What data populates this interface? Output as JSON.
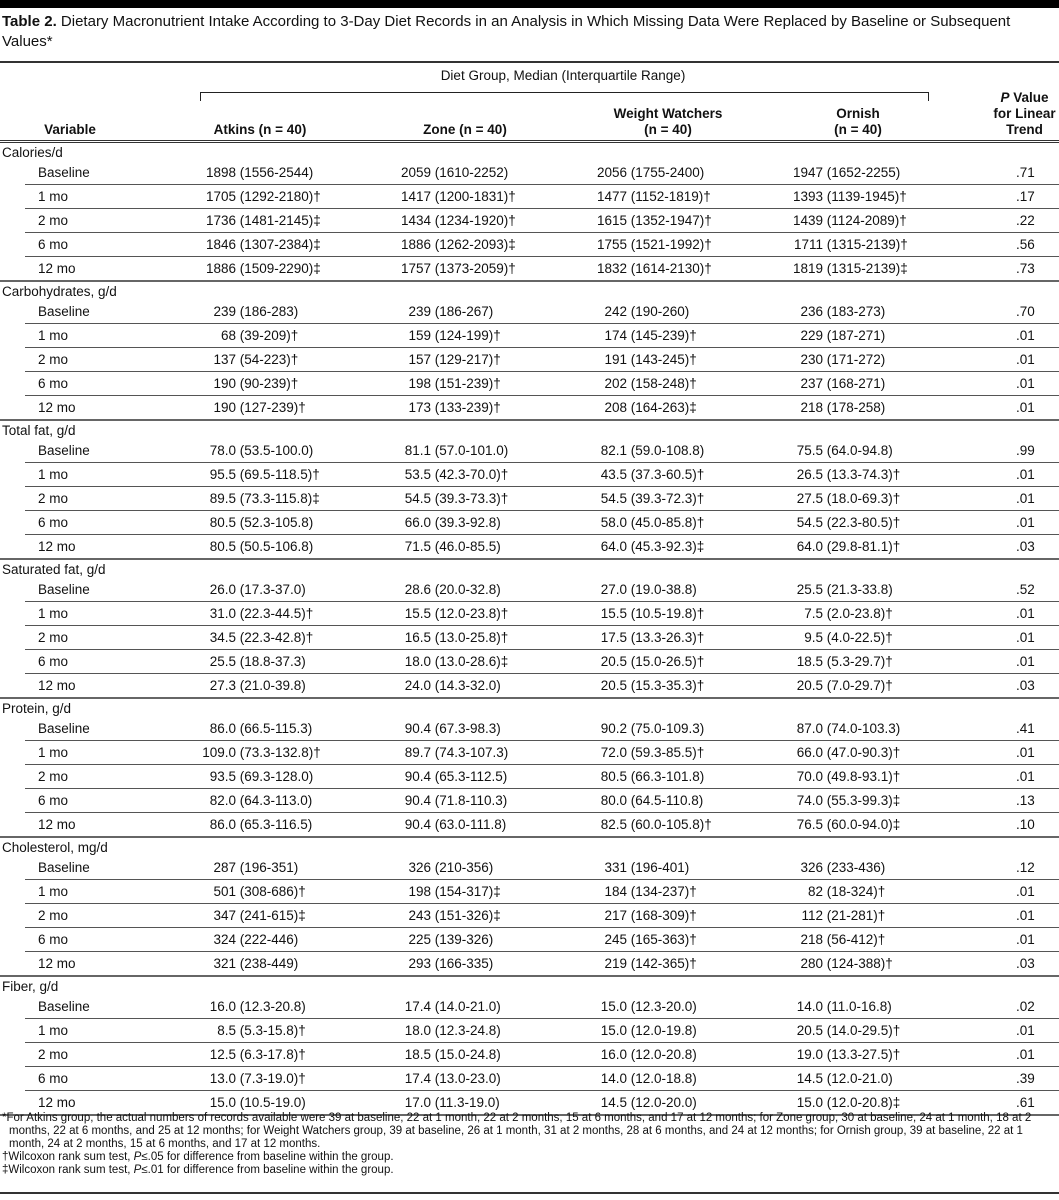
{
  "title": {
    "label": "Table 2.",
    "text": "Dietary Macronutrient Intake According to 3-Day Diet Records in an Analysis in Which Missing Data Were Replaced by Baseline or Subsequent Values*"
  },
  "header": {
    "spanner": "Diet Group, Median (Interquartile Range)",
    "variable": "Variable",
    "atkins": "Atkins (n = 40)",
    "zone": "Zone (n = 40)",
    "ww_line1": "Weight Watchers",
    "ww_line2": "(n = 40)",
    "ornish_line1": "Ornish",
    "ornish_line2": "(n = 40)",
    "p_italic": "P",
    "p_line1": " Value",
    "p_line2": "for Linear",
    "p_line3": "Trend"
  },
  "groups": [
    {
      "label": "Calories/d",
      "rows": [
        [
          "Baseline",
          "1898 (1556-2544)",
          "2059 (1610-2252)",
          "2056 (1755-2400)",
          "1947 (1652-2255)",
          ".71"
        ],
        [
          "1 mo",
          "1705 (1292-2180)†",
          "1417 (1200-1831)†",
          "1477 (1152-1819)†",
          "1393 (1139-1945)†",
          ".17"
        ],
        [
          "2 mo",
          "1736 (1481-2145)‡",
          "1434 (1234-1920)†",
          "1615 (1352-1947)†",
          "1439 (1124-2089)†",
          ".22"
        ],
        [
          "6 mo",
          "1846 (1307-2384)‡",
          "1886 (1262-2093)‡",
          "1755 (1521-1992)†",
          "1711 (1315-2139)†",
          ".56"
        ],
        [
          "12 mo",
          "1886 (1509-2290)‡",
          "1757 (1373-2059)†",
          "1832 (1614-2130)†",
          "1819 (1315-2139)‡",
          ".73"
        ]
      ]
    },
    {
      "label": "Carbohydrates, g/d",
      "rows": [
        [
          "Baseline",
          "239 (186-283)",
          "239 (186-267)",
          "242 (190-260)",
          "236 (183-273)",
          ".70"
        ],
        [
          "1 mo",
          "68 (39-209)†",
          "159 (124-199)†",
          "174 (145-239)†",
          "229 (187-271)",
          ".01"
        ],
        [
          "2 mo",
          "137 (54-223)†",
          "157 (129-217)†",
          "191 (143-245)†",
          "230 (171-272)",
          ".01"
        ],
        [
          "6 mo",
          "190 (90-239)†",
          "198 (151-239)†",
          "202 (158-248)†",
          "237 (168-271)",
          ".01"
        ],
        [
          "12 mo",
          "190 (127-239)†",
          "173 (133-239)†",
          "208 (164-263)‡",
          "218 (178-258)",
          ".01"
        ]
      ]
    },
    {
      "label": "Total fat, g/d",
      "rows": [
        [
          "Baseline",
          "78.0 (53.5-100.0)",
          "81.1 (57.0-101.0)",
          "82.1 (59.0-108.8)",
          "75.5 (64.0-94.8)",
          ".99"
        ],
        [
          "1 mo",
          "95.5 (69.5-118.5)†",
          "53.5 (42.3-70.0)†",
          "43.5 (37.3-60.5)†",
          "26.5 (13.3-74.3)†",
          ".01"
        ],
        [
          "2 mo",
          "89.5 (73.3-115.8)‡",
          "54.5 (39.3-73.3)†",
          "54.5 (39.3-72.3)†",
          "27.5 (18.0-69.3)†",
          ".01"
        ],
        [
          "6 mo",
          "80.5 (52.3-105.8)",
          "66.0 (39.3-92.8)",
          "58.0 (45.0-85.8)†",
          "54.5 (22.3-80.5)†",
          ".01"
        ],
        [
          "12 mo",
          "80.5 (50.5-106.8)",
          "71.5 (46.0-85.5)",
          "64.0 (45.3-92.3)‡",
          "64.0 (29.8-81.1)†",
          ".03"
        ]
      ]
    },
    {
      "label": "Saturated fat, g/d",
      "rows": [
        [
          "Baseline",
          "26.0 (17.3-37.0)",
          "28.6 (20.0-32.8)",
          "27.0 (19.0-38.8)",
          "25.5 (21.3-33.8)",
          ".52"
        ],
        [
          "1 mo",
          "31.0 (22.3-44.5)†",
          "15.5 (12.0-23.8)†",
          "15.5 (10.5-19.8)†",
          "7.5 (2.0-23.8)†",
          ".01"
        ],
        [
          "2 mo",
          "34.5 (22.3-42.8)†",
          "16.5 (13.0-25.8)†",
          "17.5 (13.3-26.3)†",
          "9.5 (4.0-22.5)†",
          ".01"
        ],
        [
          "6 mo",
          "25.5 (18.8-37.3)",
          "18.0 (13.0-28.6)‡",
          "20.5 (15.0-26.5)†",
          "18.5 (5.3-29.7)†",
          ".01"
        ],
        [
          "12 mo",
          "27.3 (21.0-39.8)",
          "24.0 (14.3-32.0)",
          "20.5 (15.3-35.3)†",
          "20.5 (7.0-29.7)†",
          ".03"
        ]
      ]
    },
    {
      "label": "Protein, g/d",
      "rows": [
        [
          "Baseline",
          "86.0 (66.5-115.3)",
          "90.4 (67.3-98.3)",
          "90.2 (75.0-109.3)",
          "87.0 (74.0-103.3)",
          ".41"
        ],
        [
          "1 mo",
          "109.0 (73.3-132.8)†",
          "89.7 (74.3-107.3)",
          "72.0 (59.3-85.5)†",
          "66.0 (47.0-90.3)†",
          ".01"
        ],
        [
          "2 mo",
          "93.5 (69.3-128.0)",
          "90.4 (65.3-112.5)",
          "80.5 (66.3-101.8)",
          "70.0 (49.8-93.1)†",
          ".01"
        ],
        [
          "6 mo",
          "82.0 (64.3-113.0)",
          "90.4 (71.8-110.3)",
          "80.0 (64.5-110.8)",
          "74.0 (55.3-99.3)‡",
          ".13"
        ],
        [
          "12 mo",
          "86.0 (65.3-116.5)",
          "90.4 (63.0-111.8)",
          "82.5 (60.0-105.8)†",
          "76.5 (60.0-94.0)‡",
          ".10"
        ]
      ]
    },
    {
      "label": "Cholesterol, mg/d",
      "rows": [
        [
          "Baseline",
          "287 (196-351)",
          "326 (210-356)",
          "331 (196-401)",
          "326 (233-436)",
          ".12"
        ],
        [
          "1 mo",
          "501 (308-686)†",
          "198 (154-317)‡",
          "184 (134-237)†",
          "82 (18-324)†",
          ".01"
        ],
        [
          "2 mo",
          "347 (241-615)‡",
          "243 (151-326)‡",
          "217 (168-309)†",
          "112 (21-281)†",
          ".01"
        ],
        [
          "6 mo",
          "324 (222-446)",
          "225 (139-326)",
          "245 (165-363)†",
          "218 (56-412)†",
          ".01"
        ],
        [
          "12 mo",
          "321 (238-449)",
          "293 (166-335)",
          "219 (142-365)†",
          "280 (124-388)†",
          ".03"
        ]
      ]
    },
    {
      "label": "Fiber, g/d",
      "rows": [
        [
          "Baseline",
          "16.0 (12.3-20.8)",
          "17.4 (14.0-21.0)",
          "15.0 (12.3-20.0)",
          "14.0 (11.0-16.8)",
          ".02"
        ],
        [
          "1 mo",
          "8.5 (5.3-15.8)†",
          "18.0 (12.3-24.8)",
          "15.0 (12.0-19.8)",
          "20.5 (14.0-29.5)†",
          ".01"
        ],
        [
          "2 mo",
          "12.5 (6.3-17.8)†",
          "18.5 (15.0-24.8)",
          "16.0 (12.0-20.8)",
          "19.0 (13.3-27.5)†",
          ".01"
        ],
        [
          "6 mo",
          "13.0 (7.3-19.0)†",
          "17.4 (13.0-23.0)",
          "14.0 (12.0-18.8)",
          "14.5 (12.0-21.0)",
          ".39"
        ],
        [
          "12 mo",
          "15.0 (10.5-19.0)",
          "17.0 (11.3-19.0)",
          "14.5 (12.0-20.0)",
          "15.0 (12.0-20.8)‡",
          ".61"
        ]
      ]
    }
  ],
  "footnotes": {
    "star": "*For Atkins group, the actual numbers of records available were 39 at baseline, 22 at 1 month, 22 at 2 months, 15 at 6 months, and 17 at 12 months; for Zone group, 30 at baseline, 24 at 1 month, 18 at 2 months, 22 at 6 months, and 25 at 12 months; for Weight Watchers group, 39 at baseline, 26 at 1 month, 31 at 2 months, 28 at 6 months, and 24 at 12 months; for Ornish group, 39 at baseline, 22 at 1 month, 24 at 2 months, 15 at 6 months, and 17 at 12 months.",
    "dagger_pre": "†Wilcoxon rank sum test, ",
    "dagger_p": "P",
    "dagger_post": "≤.05 for difference from baseline within the group.",
    "ddagger_pre": "‡Wilcoxon rank sum test, ",
    "ddagger_p": "P",
    "ddagger_post": "≤.01 for difference from baseline within the group."
  }
}
